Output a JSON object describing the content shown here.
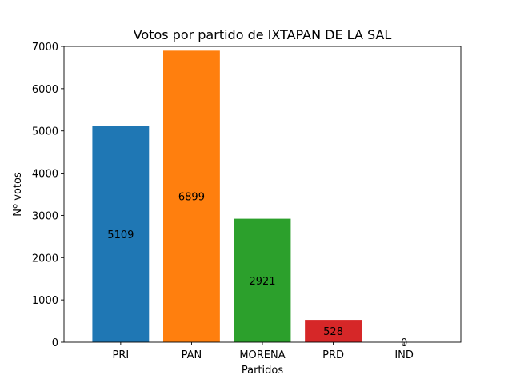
{
  "chart_data": {
    "type": "bar",
    "title": "Votos por partido de IXTAPAN DE LA SAL",
    "xlabel": "Partidos",
    "ylabel": "Nº votos",
    "categories": [
      "PRI",
      "PAN",
      "MORENA",
      "PRD",
      "IND"
    ],
    "values": [
      5109,
      6899,
      2921,
      528,
      0
    ],
    "data_labels": [
      "5109",
      "6899",
      "2921",
      "528",
      "0"
    ],
    "colors": [
      "#1f77b4",
      "#ff7f0e",
      "#2ca02c",
      "#d62728",
      "#9467bd"
    ],
    "ylim": [
      0,
      7000
    ],
    "yticks": [
      0,
      1000,
      2000,
      3000,
      4000,
      5000,
      6000,
      7000
    ],
    "ytick_labels": [
      "0",
      "1000",
      "2000",
      "3000",
      "4000",
      "5000",
      "6000",
      "7000"
    ],
    "grid": false,
    "legend": "none"
  }
}
